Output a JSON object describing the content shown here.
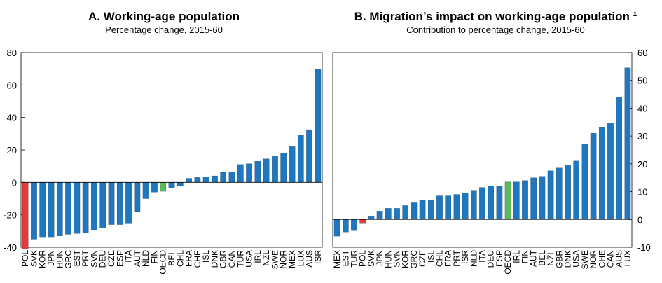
{
  "chart_data": [
    {
      "type": "bar",
      "title": "A. Working-age population",
      "subtitle": "Percentage change, 2015-60",
      "xlabel": "",
      "ylabel": "",
      "ylim": [
        -40,
        80
      ],
      "yticks": [
        -40,
        -20,
        0,
        20,
        40,
        60,
        80
      ],
      "y_axis_side": "left",
      "grid": false,
      "categories": [
        "POL",
        "SVK",
        "KOR",
        "JPN",
        "HUN",
        "GRC",
        "EST",
        "PRT",
        "SVN",
        "DEU",
        "CZE",
        "ESP",
        "ITA",
        "AUT",
        "NLD",
        "FIN",
        "OECD",
        "BEL",
        "CHL",
        "FRA",
        "CHE",
        "ISL",
        "DNK",
        "GBR",
        "CAN",
        "TUR",
        "USA",
        "IRL",
        "NZL",
        "SWE",
        "NOR",
        "MEX",
        "LUX",
        "AUS",
        "ISR"
      ],
      "values": [
        -41,
        -35,
        -34,
        -34,
        -33,
        -32,
        -31.5,
        -31,
        -29.5,
        -28,
        -26,
        -26,
        -25.5,
        -18,
        -10,
        -6,
        -5.5,
        -3.5,
        -2,
        2.5,
        3,
        3.5,
        4,
        6.5,
        6.5,
        11,
        11.5,
        13,
        14.5,
        16,
        18,
        22,
        29,
        32.5,
        70
      ],
      "highlight": {
        "POL": "#e8393d",
        "OECD": "#5cb85c"
      },
      "bar_color": "#1f77c0"
    },
    {
      "type": "bar",
      "title": "B. Migration’s impact on working-age population ¹",
      "subtitle": "Contribution to percentage change, 2015-60",
      "xlabel": "",
      "ylabel": "",
      "ylim": [
        -10,
        60
      ],
      "yticks": [
        -10,
        0,
        10,
        20,
        30,
        40,
        50,
        60
      ],
      "y_axis_side": "right",
      "grid": false,
      "categories": [
        "MEX",
        "EST",
        "TUR",
        "POL",
        "SVK",
        "JPN",
        "HUN",
        "SVN",
        "KOR",
        "GRC",
        "CZE",
        "ISL",
        "CHL",
        "FRA",
        "PRT",
        "ISR",
        "NLD",
        "ITA",
        "DEU",
        "ESP",
        "OECD",
        "IRL",
        "FIN",
        "AUT",
        "BEL",
        "NZL",
        "GBR",
        "DNK",
        "USA",
        "SWE",
        "NOR",
        "CHE",
        "CAN",
        "AUS",
        "LUX"
      ],
      "values": [
        -6,
        -4.5,
        -4,
        -1.5,
        1,
        3,
        4,
        4,
        5,
        6,
        7,
        7,
        8.5,
        8.5,
        9,
        9.5,
        10.5,
        11.5,
        12,
        12,
        13.5,
        13.5,
        14,
        15,
        15.5,
        17.5,
        18.5,
        19.5,
        21,
        27,
        31,
        33,
        34.5,
        44,
        54.5
      ],
      "highlight": {
        "POL": "#e8393d",
        "OECD": "#5cb85c"
      },
      "bar_color": "#1f77c0"
    }
  ]
}
